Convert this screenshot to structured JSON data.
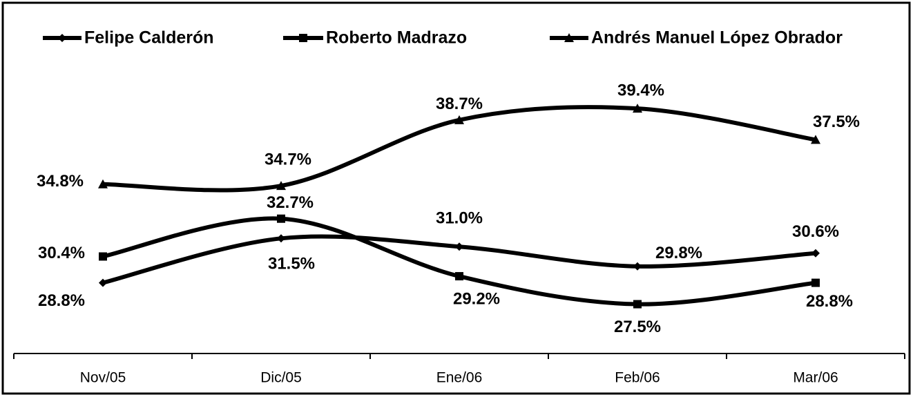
{
  "chart_data": {
    "type": "line",
    "categories": [
      "Nov/05",
      "Dic/05",
      "Ene/06",
      "Feb/06",
      "Mar/06"
    ],
    "ylim": [
      24.5,
      46
    ],
    "series": [
      {
        "name": "Felipe Calderón",
        "color": "#000000",
        "marker": "diamond",
        "values": [
          28.8,
          31.5,
          31.0,
          29.8,
          30.6
        ],
        "value_labels": [
          "28.8%",
          "31.5%",
          "31.0%",
          "29.8%",
          "30.6%"
        ]
      },
      {
        "name": "Roberto Madrazo",
        "color": "#000000",
        "marker": "square",
        "values": [
          30.4,
          32.7,
          29.2,
          27.5,
          28.8
        ],
        "value_labels": [
          "30.4%",
          "32.7%",
          "29.2%",
          "27.5%",
          "28.8%"
        ]
      },
      {
        "name": "Andrés Manuel López Obrador",
        "color": "#000000",
        "marker": "triangle",
        "values": [
          34.8,
          34.7,
          38.7,
          39.4,
          37.5
        ],
        "value_labels": [
          "34.8%",
          "34.7%",
          "38.7%",
          "39.4%",
          "37.5%"
        ]
      }
    ]
  }
}
